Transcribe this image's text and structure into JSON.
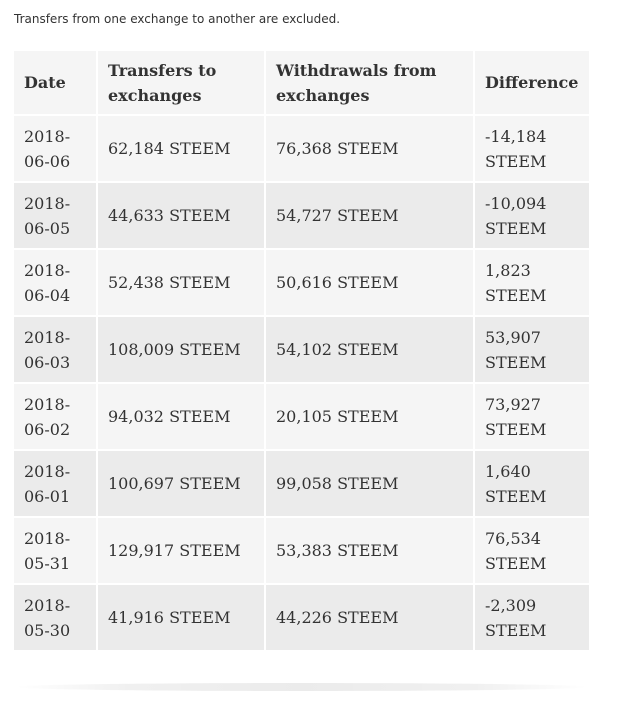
{
  "note": "Transfers from one exchange to another are excluded.",
  "table": {
    "headers": [
      "Date",
      "Transfers to exchanges",
      "Withdrawals from exchanges",
      "Difference"
    ],
    "rows": [
      {
        "date": "2018-06-06",
        "to": "62,184 STEEM",
        "from": "76,368 STEEM",
        "diff": "-14,184 STEEM"
      },
      {
        "date": "2018-06-05",
        "to": "44,633 STEEM",
        "from": "54,727 STEEM",
        "diff": "-10,094 STEEM"
      },
      {
        "date": "2018-06-04",
        "to": "52,438 STEEM",
        "from": "50,616 STEEM",
        "diff": "1,823 STEEM"
      },
      {
        "date": "2018-06-03",
        "to": "108,009 STEEM",
        "from": "54,102 STEEM",
        "diff": "53,907 STEEM"
      },
      {
        "date": "2018-06-02",
        "to": "94,032 STEEM",
        "from": "20,105 STEEM",
        "diff": "73,927 STEEM"
      },
      {
        "date": "2018-06-01",
        "to": "100,697 STEEM",
        "from": "99,058 STEEM",
        "diff": "1,640 STEEM"
      },
      {
        "date": "2018-05-31",
        "to": "129,917 STEEM",
        "from": "53,383 STEEM",
        "diff": "76,534 STEEM"
      },
      {
        "date": "2018-05-30",
        "to": "41,916 STEEM",
        "from": "44,226 STEEM",
        "diff": "-2,309 STEEM"
      }
    ]
  }
}
